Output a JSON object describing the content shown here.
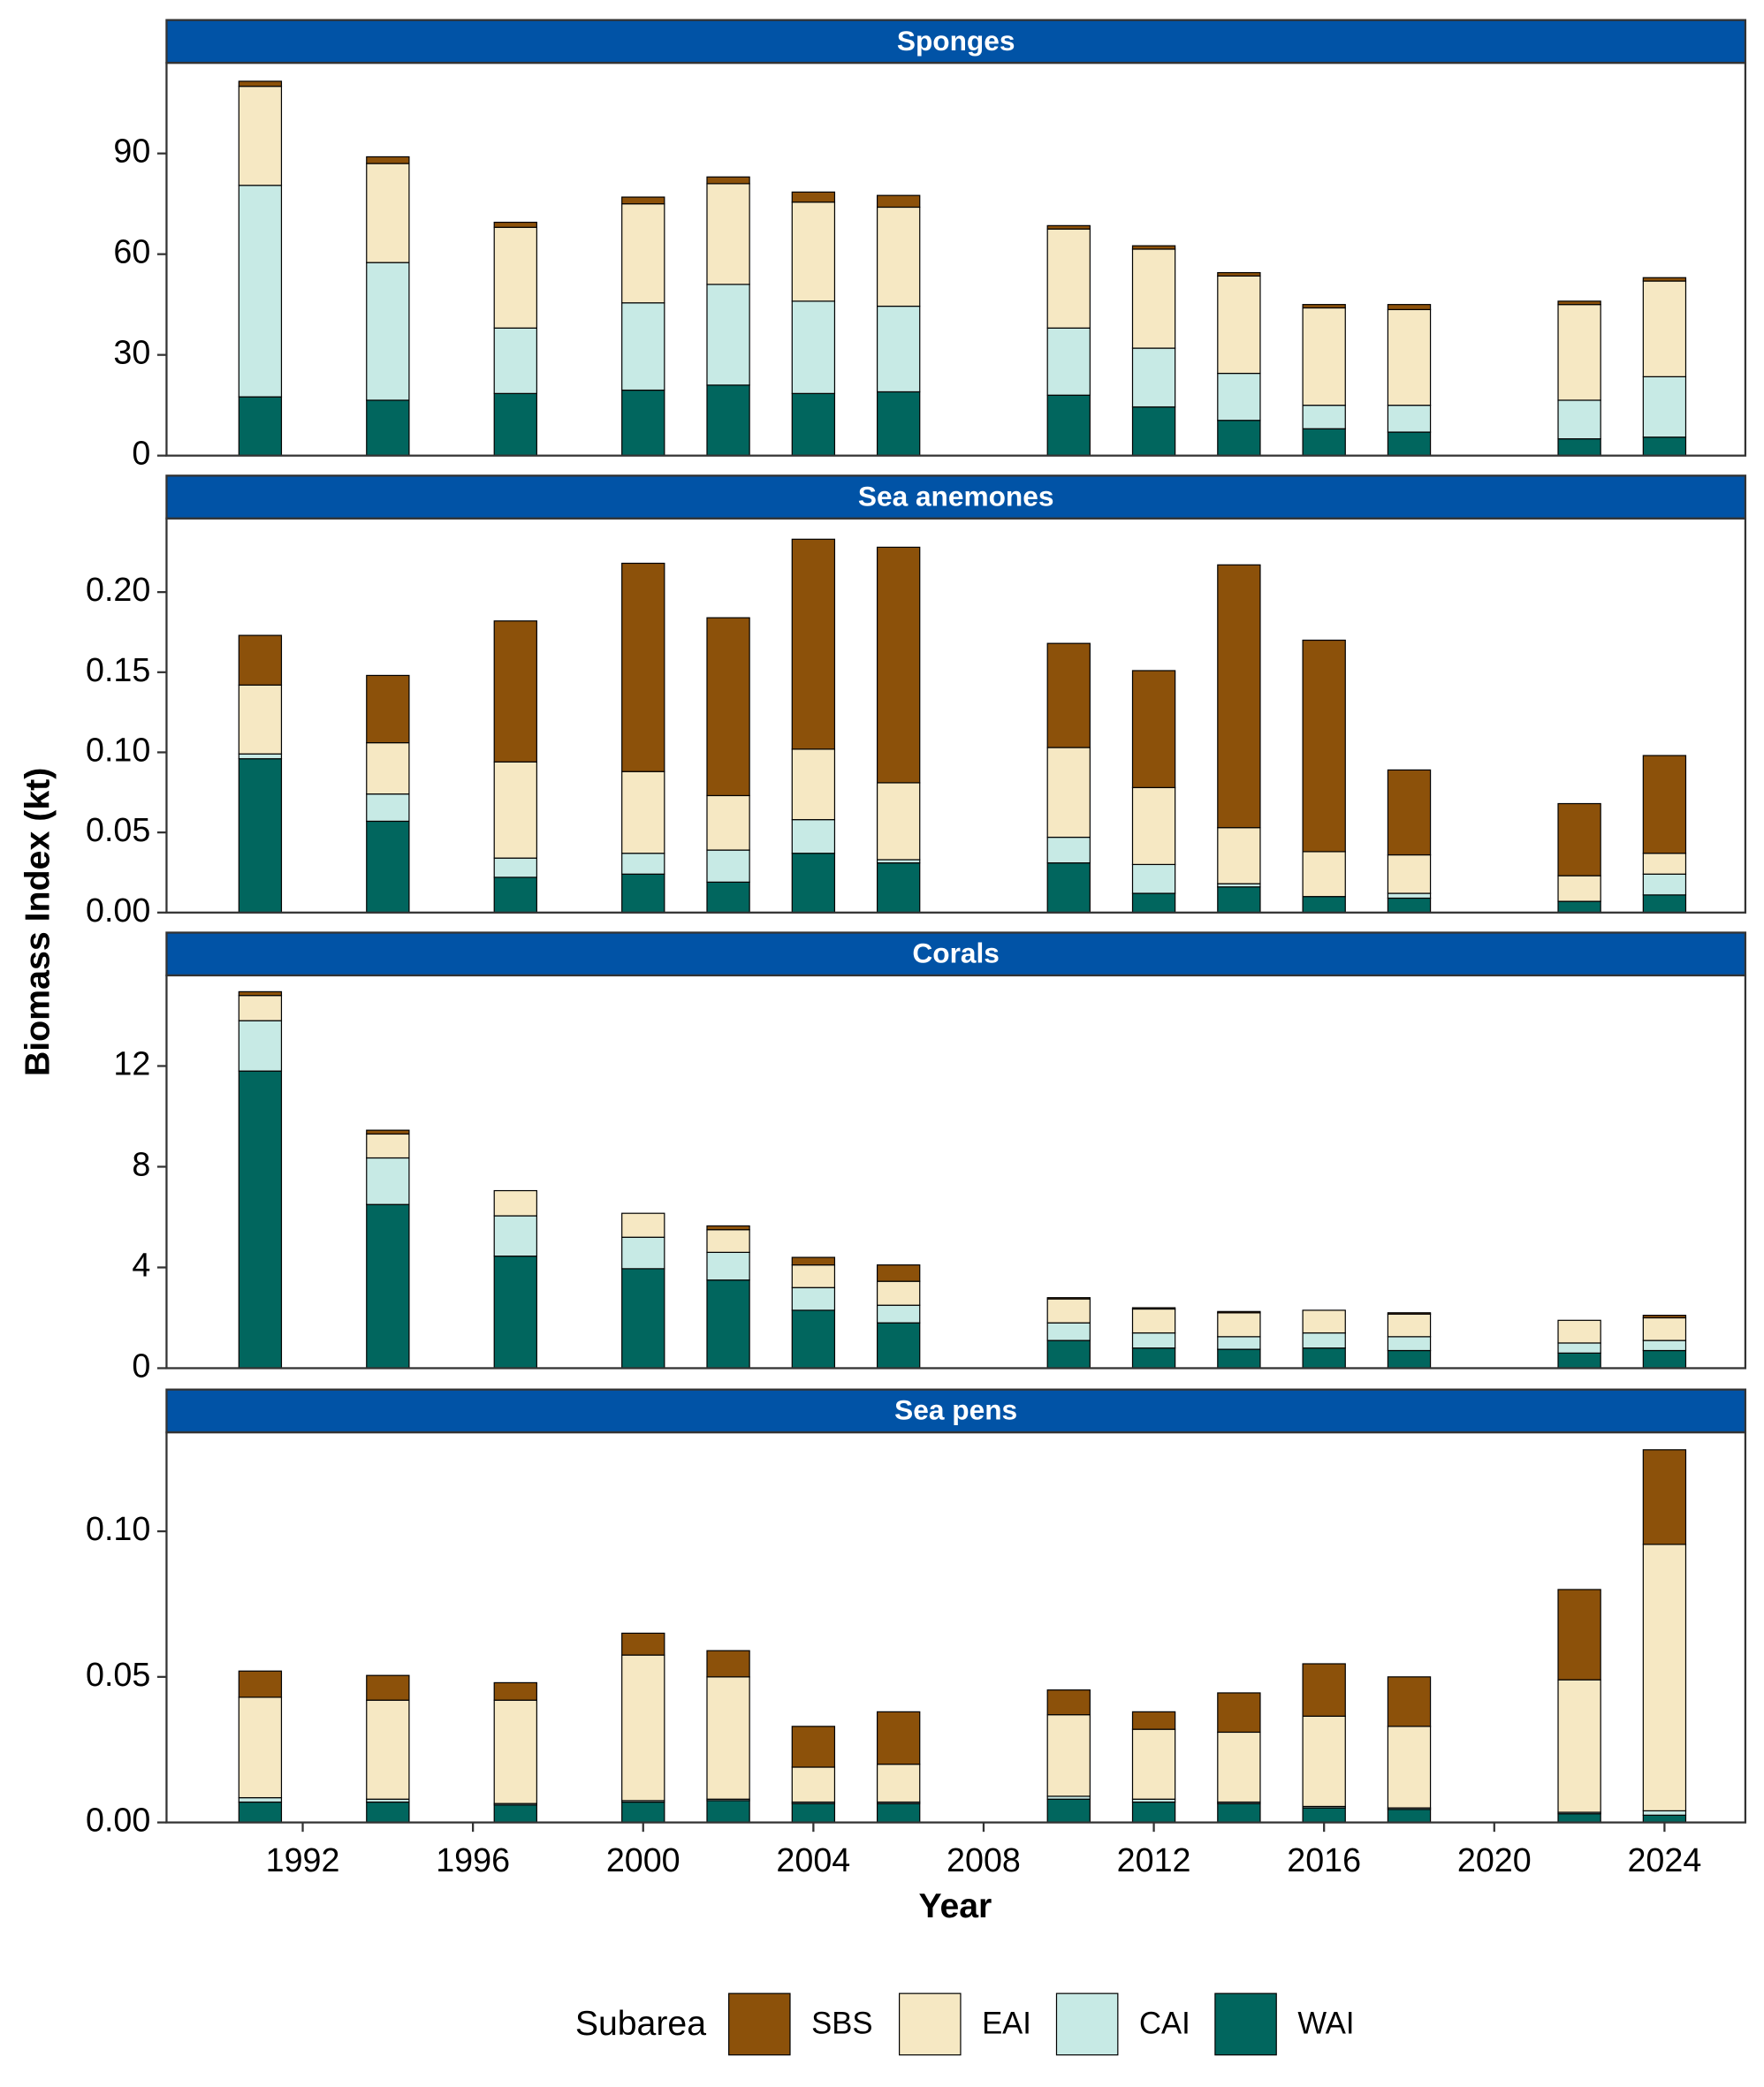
{
  "y_label": "Biomass Index (kt)",
  "x_label": "Year",
  "legend_title": "Subarea",
  "chart_data": [
    {
      "type": "bar",
      "stacked": true,
      "title": "Sponges",
      "x": [
        1991,
        1994,
        1997,
        2000,
        2002,
        2004,
        2006,
        2010,
        2012,
        2014,
        2016,
        2018,
        2022,
        2024
      ],
      "xlim": [
        1988.8,
        2025.9
      ],
      "ylim": [
        0,
        117
      ],
      "yticks": [
        0,
        30,
        60,
        90
      ],
      "series": [
        {
          "name": "SBS",
          "color": "#8c510a",
          "values": [
            1.5,
            2,
            1.5,
            2,
            2,
            3,
            3.5,
            1,
            1,
            1,
            1,
            1.5,
            1,
            1
          ]
        },
        {
          "name": "EAI",
          "color": "#f6e8c3",
          "values": [
            29.5,
            29.5,
            30,
            29.5,
            30,
            29.5,
            29.5,
            29.5,
            29.5,
            29,
            29,
            28.5,
            28.5,
            28.5
          ]
        },
        {
          "name": "CAI",
          "color": "#c7eae5",
          "values": [
            63,
            41,
            19.5,
            26,
            30,
            27.5,
            25.5,
            20,
            17.5,
            14,
            7,
            8,
            11.5,
            18
          ]
        },
        {
          "name": "WAI",
          "color": "#01665e",
          "values": [
            17.5,
            16.5,
            18.5,
            19.5,
            21,
            18.5,
            19,
            18,
            14.5,
            10.5,
            8,
            7,
            5,
            5.5
          ]
        }
      ]
    },
    {
      "type": "bar",
      "stacked": true,
      "title": "Sea anemones",
      "x": [
        1991,
        1994,
        1997,
        2000,
        2002,
        2004,
        2006,
        2010,
        2012,
        2014,
        2016,
        2018,
        2022,
        2024
      ],
      "xlim": [
        1988.8,
        2025.9
      ],
      "ylim": [
        0,
        0.246
      ],
      "yticks": [
        {
          "value": 0,
          "label": "0.00"
        },
        0.05,
        {
          "value": 0.1,
          "label": "0.10"
        },
        0.15,
        {
          "value": 0.2,
          "label": "0.20"
        }
      ],
      "series": [
        {
          "name": "SBS",
          "color": "#8c510a",
          "values": [
            0.031,
            0.042,
            0.088,
            0.13,
            0.111,
            0.131,
            0.147,
            0.065,
            0.073,
            0.164,
            0.132,
            0.053,
            0.045,
            0.061
          ]
        },
        {
          "name": "EAI",
          "color": "#f6e8c3",
          "values": [
            0.043,
            0.032,
            0.06,
            0.051,
            0.034,
            0.044,
            0.048,
            0.056,
            0.048,
            0.035,
            0.028,
            0.024,
            0.016,
            0.013
          ]
        },
        {
          "name": "CAI",
          "color": "#c7eae5",
          "values": [
            0.003,
            0.017,
            0.012,
            0.013,
            0.02,
            0.021,
            0.002,
            0.016,
            0.018,
            0.002,
            0,
            0.003,
            0,
            0.013
          ]
        },
        {
          "name": "WAI",
          "color": "#01665e",
          "values": [
            0.096,
            0.057,
            0.022,
            0.024,
            0.019,
            0.037,
            0.031,
            0.031,
            0.012,
            0.016,
            0.01,
            0.009,
            0.007,
            0.011
          ]
        }
      ]
    },
    {
      "type": "bar",
      "stacked": true,
      "title": "Corals",
      "x": [
        1991,
        1994,
        1997,
        2000,
        2002,
        2004,
        2006,
        2010,
        2012,
        2014,
        2016,
        2018,
        2022,
        2024
      ],
      "xlim": [
        1988.8,
        2025.9
      ],
      "ylim": [
        0,
        15.6
      ],
      "yticks": [
        0,
        4,
        8,
        12
      ],
      "series": [
        {
          "name": "SBS",
          "color": "#8c510a",
          "values": [
            0.15,
            0.15,
            0,
            0,
            0.15,
            0.3,
            0.65,
            0.05,
            0.05,
            0.05,
            0,
            0.05,
            0,
            0.1
          ]
        },
        {
          "name": "EAI",
          "color": "#f6e8c3",
          "values": [
            1.0,
            0.95,
            1.0,
            0.95,
            0.9,
            0.9,
            0.95,
            0.95,
            0.95,
            0.95,
            0.9,
            0.9,
            0.9,
            0.9
          ]
        },
        {
          "name": "CAI",
          "color": "#c7eae5",
          "values": [
            2.0,
            1.85,
            1.6,
            1.25,
            1.1,
            0.9,
            0.7,
            0.7,
            0.6,
            0.5,
            0.6,
            0.55,
            0.4,
            0.4
          ]
        },
        {
          "name": "WAI",
          "color": "#01665e",
          "values": [
            11.8,
            6.5,
            4.45,
            3.95,
            3.5,
            2.3,
            1.8,
            1.1,
            0.8,
            0.75,
            0.8,
            0.7,
            0.6,
            0.7
          ]
        }
      ]
    },
    {
      "type": "bar",
      "stacked": true,
      "title": "Sea pens",
      "x": [
        1991,
        1994,
        1997,
        2000,
        2002,
        2004,
        2006,
        2010,
        2012,
        2014,
        2016,
        2018,
        2022,
        2024
      ],
      "xlim": [
        1988.8,
        2025.9
      ],
      "ylim": [
        0,
        0.134
      ],
      "yticks": [
        {
          "value": 0,
          "label": "0.00"
        },
        0.05,
        {
          "value": 0.1,
          "label": "0.10"
        }
      ],
      "xticks": [
        1992,
        1996,
        2000,
        2004,
        2008,
        2012,
        2016,
        2020,
        2024
      ],
      "series": [
        {
          "name": "SBS",
          "color": "#8c510a",
          "values": [
            0.009,
            0.0085,
            0.006,
            0.0075,
            0.009,
            0.014,
            0.018,
            0.0085,
            0.006,
            0.0135,
            0.018,
            0.017,
            0.031,
            0.0325
          ]
        },
        {
          "name": "EAI",
          "color": "#f6e8c3",
          "values": [
            0.0345,
            0.034,
            0.0355,
            0.05,
            0.042,
            0.012,
            0.013,
            0.028,
            0.024,
            0.024,
            0.031,
            0.028,
            0.0455,
            0.0915
          ]
        },
        {
          "name": "CAI",
          "color": "#c7eae5",
          "values": [
            0.0015,
            0.001,
            0.0005,
            0.0005,
            0.0005,
            0.0005,
            0.0005,
            0.001,
            0.001,
            0.0005,
            0.0005,
            0.0005,
            0.0005,
            0.0015
          ]
        },
        {
          "name": "WAI",
          "color": "#01665e",
          "values": [
            0.007,
            0.007,
            0.006,
            0.007,
            0.0075,
            0.0065,
            0.0065,
            0.008,
            0.007,
            0.0065,
            0.005,
            0.0045,
            0.003,
            0.0025
          ]
        }
      ]
    }
  ]
}
